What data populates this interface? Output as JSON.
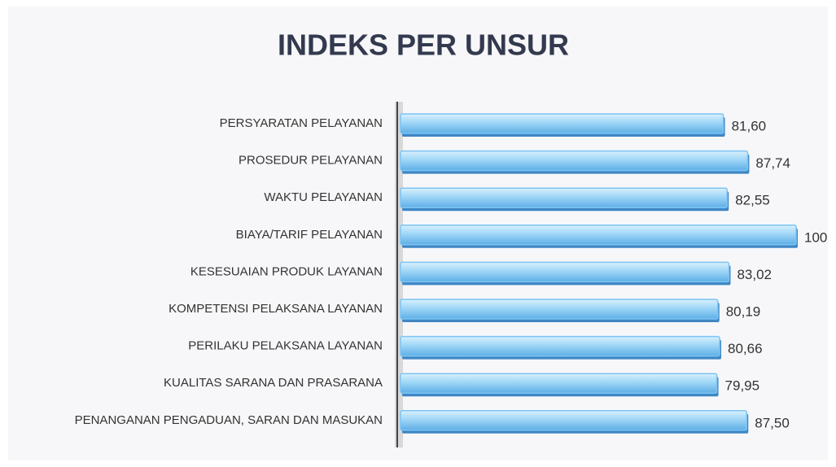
{
  "chart_data": {
    "type": "bar",
    "orientation": "horizontal",
    "title": "INDEKS PER UNSUR",
    "categories": [
      "PERSYARATAN PELAYANAN",
      "PROSEDUR PELAYANAN",
      "WAKTU PELAYANAN",
      "BIAYA/TARIF PELAYANAN",
      "KESESUAIAN PRODUK LAYANAN",
      "KOMPETENSI PELAKSANA LAYANAN",
      "PERILAKU PELAKSANA LAYANAN",
      "KUALITAS SARANA DAN PRASARANA",
      "PENANGANAN PENGADUAN, SARAN DAN MASUKAN"
    ],
    "values": [
      81.6,
      87.74,
      82.55,
      100,
      83.02,
      80.19,
      80.66,
      79.95,
      87.5
    ],
    "value_labels": [
      "81,60",
      "87,74",
      "82,55",
      "100",
      "83,02",
      "80,19",
      "80,66",
      "79,95",
      "87,50"
    ],
    "color": "#7cc4f2",
    "xlim": [
      0,
      100
    ]
  }
}
